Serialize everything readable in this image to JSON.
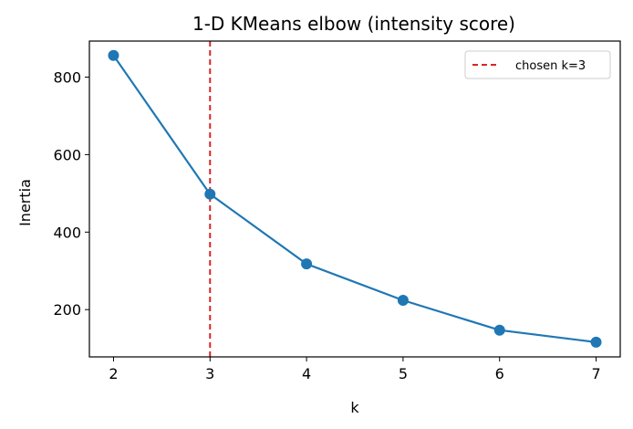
{
  "chart_data": {
    "type": "line",
    "title": "1-D KMeans elbow (intensity score)",
    "xlabel": "k",
    "ylabel": "Inertia",
    "x": [
      2,
      3,
      4,
      5,
      6,
      7
    ],
    "series": [
      {
        "values": [
          856,
          498,
          318,
          224,
          147,
          116
        ],
        "color": "#1f77b4",
        "marker": "circle"
      }
    ],
    "xticks": [
      2,
      3,
      4,
      5,
      6,
      7
    ],
    "yticks": [
      200,
      400,
      600,
      800
    ],
    "xlim": [
      1.75,
      7.25
    ],
    "ylim": [
      78,
      893
    ],
    "annotations": [
      {
        "type": "vline",
        "x": 3,
        "style": "dashed",
        "color": "#d62728",
        "label": "chosen k=3"
      }
    ],
    "legend": {
      "placement": "top-right",
      "entries": [
        "chosen k=3"
      ]
    },
    "grid": false
  }
}
